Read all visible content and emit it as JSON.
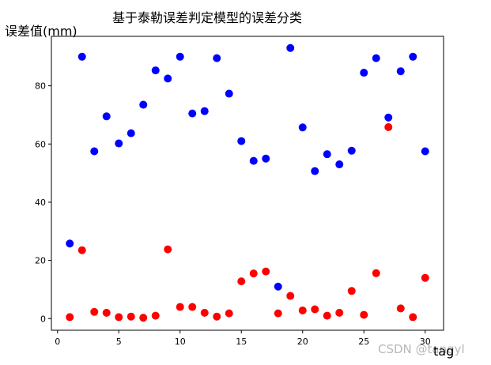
{
  "chart_data": {
    "type": "scatter",
    "title": "基于泰勒误差判定模型的误差分类",
    "xlabel": "tag",
    "ylabel": "误差值(mm)",
    "xlim": [
      -0.5,
      31.5
    ],
    "ylim": [
      -4,
      97
    ],
    "xticks": [
      0,
      5,
      10,
      15,
      20,
      25,
      30
    ],
    "yticks": [
      0,
      20,
      40,
      60,
      80
    ],
    "grid": false,
    "series": [
      {
        "color": "#0000ff",
        "points": [
          [
            1,
            25.8
          ],
          [
            2,
            90
          ],
          [
            3,
            57.5
          ],
          [
            4,
            69.5
          ],
          [
            5,
            60.2
          ],
          [
            6,
            63.7
          ],
          [
            7,
            73.5
          ],
          [
            8,
            85.3
          ],
          [
            9,
            82.5
          ],
          [
            10,
            90
          ],
          [
            11,
            70.5
          ],
          [
            12,
            71.3
          ],
          [
            13,
            89.5
          ],
          [
            14,
            77.3
          ],
          [
            15,
            61
          ],
          [
            16,
            54.2
          ],
          [
            17,
            55
          ],
          [
            18,
            11
          ],
          [
            19,
            93
          ],
          [
            20,
            65.7
          ],
          [
            21,
            50.7
          ],
          [
            22,
            56.5
          ],
          [
            23,
            53
          ],
          [
            24,
            57.7
          ],
          [
            25,
            84.5
          ],
          [
            26,
            89.5
          ],
          [
            27,
            69.1
          ],
          [
            28,
            85
          ],
          [
            29,
            90
          ],
          [
            30,
            57.5
          ]
        ]
      },
      {
        "color": "#ff0000",
        "points": [
          [
            1,
            0.5
          ],
          [
            2,
            23.5
          ],
          [
            3,
            2.3
          ],
          [
            4,
            2
          ],
          [
            5,
            0.5
          ],
          [
            6,
            0.7
          ],
          [
            7,
            0.3
          ],
          [
            8,
            1
          ],
          [
            9,
            23.8
          ],
          [
            10,
            4
          ],
          [
            11,
            4
          ],
          [
            12,
            2
          ],
          [
            13,
            0.7
          ],
          [
            14,
            1.8
          ],
          [
            15,
            12.8
          ],
          [
            16,
            15.5
          ],
          [
            17,
            16.2
          ],
          [
            18,
            1.8
          ],
          [
            19,
            7.8
          ],
          [
            20,
            2.8
          ],
          [
            21,
            3.2
          ],
          [
            22,
            1
          ],
          [
            23,
            2
          ],
          [
            24,
            9.5
          ],
          [
            25,
            1.3
          ],
          [
            26,
            15.6
          ],
          [
            27,
            65.8
          ],
          [
            28,
            3.5
          ],
          [
            29,
            0.5
          ],
          [
            30,
            14
          ]
        ]
      }
    ]
  },
  "watermark": "CSDN @tangyl"
}
